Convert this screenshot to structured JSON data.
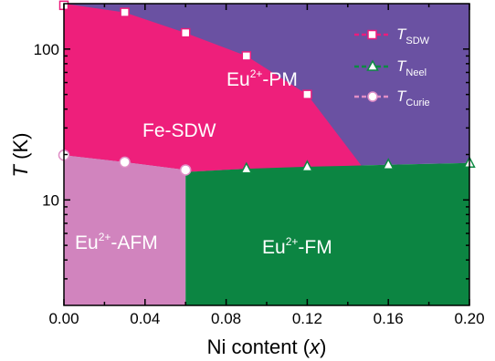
{
  "chart_data": {
    "type": "scatter",
    "title": "",
    "xlabel": "Ni content (x)",
    "xlabel_main": "Ni content (",
    "xlabel_var": "x",
    "xlabel_end": ")",
    "ylabel": "T (K)",
    "ylabel_var": "T",
    "ylabel_unit": " (K)",
    "xlim": [
      0.0,
      0.2
    ],
    "ylim": [
      2.0,
      200.0
    ],
    "yscale": "log",
    "x_ticks": [
      {
        "value": 0.0,
        "label": "0.00"
      },
      {
        "value": 0.04,
        "label": "0.04"
      },
      {
        "value": 0.08,
        "label": "0.08"
      },
      {
        "value": 0.12,
        "label": "0.12"
      },
      {
        "value": 0.16,
        "label": "0.16"
      },
      {
        "value": 0.2,
        "label": "0.20"
      }
    ],
    "y_ticks": [
      {
        "value": 10,
        "label": "10"
      },
      {
        "value": 100,
        "label": "100"
      }
    ],
    "legend_position": "top-right",
    "series": [
      {
        "name": "T_SDW",
        "name_main": "T",
        "name_sub": "SDW",
        "marker": "square",
        "color": "#ec1b7c",
        "x": [
          0.0,
          0.03,
          0.06,
          0.09,
          0.12
        ],
        "y": [
          195,
          175,
          128,
          90,
          50
        ]
      },
      {
        "name": "T_Neel",
        "name_main": "T",
        "name_sub": "Neel",
        "marker": "triangle",
        "color": "#0d8a43",
        "x": [
          0.09,
          0.12,
          0.16,
          0.2
        ],
        "y": [
          16.1,
          16.6,
          17.1,
          17.6
        ]
      },
      {
        "name": "T_Curie",
        "name_main": "T",
        "name_sub": "Curie",
        "marker": "circle",
        "color": "#e08ec6",
        "x": [
          0.0,
          0.03,
          0.06
        ],
        "y": [
          19.8,
          17.8,
          15.8
        ]
      }
    ],
    "regions": [
      {
        "label_main": "Eu",
        "label_sup": "2+",
        "label_end": "-PM",
        "color": "#6a51a2"
      },
      {
        "label_main": "Fe-SDW",
        "label_sup": "",
        "label_end": "",
        "color": "#ee1f7b"
      },
      {
        "label_main": "Eu",
        "label_sup": "2+",
        "label_end": "-AFM",
        "color": "#d184be"
      },
      {
        "label_main": "Eu",
        "label_sup": "2+",
        "label_end": "-FM",
        "color": "#0c8542"
      }
    ]
  }
}
